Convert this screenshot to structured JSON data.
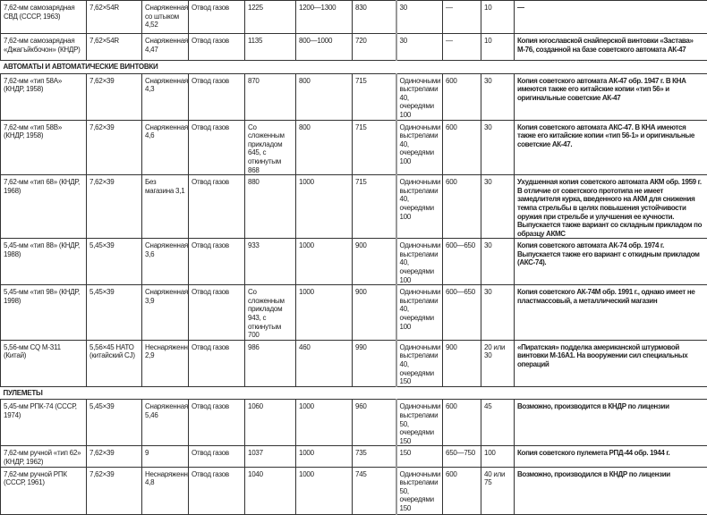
{
  "rows": [
    {
      "type": "row",
      "h": 37,
      "cells": [
        "7,62-мм самозарядная СВД (СССР, 1963)",
        "7,62×54R",
        "Снаряженная со штыком 4,52",
        "Отвод газов",
        "1225",
        "1200—1300",
        "830",
        "30",
        "—",
        "10",
        "—"
      ]
    },
    {
      "type": "row",
      "h": 30,
      "cells": [
        "7,62-мм самозарядная «Джагъйкбочон» (КНДР)",
        "7,62×54R",
        "Снаряженная 4,47",
        "Отвод газов",
        "1135",
        "800—1000",
        "720",
        "30",
        "—",
        "10",
        "Копия югославской снайперской винтовки «Застава» М-76, созданной на базе советского автомата АК-47"
      ]
    },
    {
      "type": "section",
      "h": 13,
      "title": "АВТОМАТЫ И АВТОМАТИЧЕСКИЕ ВИНТОВКИ"
    },
    {
      "type": "row",
      "h": 37,
      "cells": [
        "7,62-мм «тип 58А» (КНДР, 1958)",
        "7,62×39",
        "Снаряженная 4,3",
        "Отвод газов",
        "870",
        "800",
        "715",
        "Одиночными выстрелами 40, очередями 100",
        "600",
        "30",
        "Копия советского автомата АК-47 обр. 1947 г. В КНА имеются также его китайские копии «тип 56» и оригинальные советские АК-47"
      ]
    },
    {
      "type": "row",
      "h": 41,
      "cells": [
        "7,62-мм «тип 58В» (КНДР, 1958)",
        "7,62×39",
        "Снаряженная 4,6",
        "Отвод газов",
        "Со сложенным прикладом 645, с откинутым 868",
        "800",
        "715",
        "Одиночными выстрелами 40, очередями 100",
        "600",
        "30",
        "Копия советского автомата АКС-47. В КНА имеются также его китайские копии «тип 56-1» и оригинальные советские АК-47."
      ]
    },
    {
      "type": "row",
      "h": 61,
      "cells": [
        "7,62-мм «тип 68» (КНДР, 1968)",
        "7,62×39",
        "Без магазина 3,1",
        "Отвод газов",
        "880",
        "1000",
        "715",
        "Одиночными выстрелами 40, очередями 100",
        "600",
        "30",
        "Ухудшенная копия советского автомата АКМ обр. 1959 г. В отличие от советского прототипа не имеет замедлителя курка, введенного на АКМ для снижения темпа стрельбы в целях повышения устойчивости оружия при стрельбе и улучшения ее кучности. Выпускается также вариант со складным прикладом по образцу АКМС"
      ]
    },
    {
      "type": "row",
      "h": 43,
      "cells": [
        "5,45-мм «тип 88» (КНДР, 1988)",
        "5,45×39",
        "Снаряженная 3,6",
        "Отвод газов",
        "933",
        "1000",
        "900",
        "Одиночными выстрелами 40, очередями 100",
        "600—650",
        "30",
        "Копия советского автомата АК-74 обр. 1974 г. Выпускается также его вариант с откидным прикладом (АКС-74)."
      ]
    },
    {
      "type": "row",
      "h": 51,
      "cells": [
        "5,45-мм «тип 98» (КНДР, 1998)",
        "5,45×39",
        "Снаряженная 3,9",
        "Отвод газов",
        "Со сложенным прикладом 943, с откинутым 700",
        "1000",
        "900",
        "Одиночными выстрелами 40, очередями 100",
        "600—650",
        "30",
        "Копия советского АК-74М обр. 1991 г., однако имеет не пластмассовый, а металлический магазин"
      ]
    },
    {
      "type": "row",
      "h": 48,
      "cells": [
        "5,56-мм CQ M-311 (Китай)",
        "5,56×45 НАТО (китайский CJ)",
        "Неснаряженная 2,9",
        "Отвод газов",
        "986",
        "460",
        "990",
        "Одиночными выстрелами 40, очередями 150",
        "900",
        "20 или 30",
        "«Пиратская» подделка американской штурмовой винтовки М-16А1. На вооружении сил специальных операций"
      ]
    },
    {
      "type": "section",
      "h": 14,
      "title": "ПУЛЕМЕТЫ"
    },
    {
      "type": "row",
      "h": 43,
      "cells": [
        "5,45-мм РПК-74 (СССР, 1974)",
        "5,45×39",
        "Снаряженная 5,46",
        "Отвод газов",
        "1060",
        "1000",
        "960",
        "Одиночными выстрелами 50, очередями 150",
        "600",
        "45",
        "Возможно, производится в КНДР по лицензии"
      ]
    },
    {
      "type": "row",
      "h": 22,
      "cells": [
        "7,62-мм ручной «тип 62» (КНДР, 1962)",
        "7,62×39",
        "9",
        "Отвод газов",
        "1037",
        "1000",
        "735",
        "150",
        "650—750",
        "100",
        "Копия советского пулемета РПД-44 обр. 1944 г."
      ]
    },
    {
      "type": "row",
      "h": 53,
      "cells": [
        "7,62-мм ручной РПК (СССР, 1961)",
        "7,62×39",
        "Неснаряженная 4,8",
        "Отвод газов",
        "1040",
        "1000",
        "745",
        "Одиночными выстрелами 50, очередями 150",
        "600",
        "40 или 75",
        "Возможно, производился в КНДР по лицензии"
      ]
    }
  ]
}
